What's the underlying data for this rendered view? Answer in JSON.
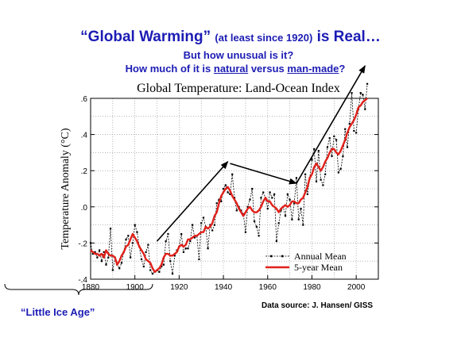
{
  "slide": {
    "title_main_a": "“Global Warming”",
    "title_paren": "(at least since 1920)",
    "title_main_b": "is Real…",
    "question_1": "But how unusual is it?",
    "question_2_a": "How much of it is ",
    "question_2_natural": "natural",
    "question_2_b": " versus ",
    "question_2_manmade": "man-made",
    "question_2_c": "?",
    "little_ice_age": "“Little Ice Age”",
    "data_source": "Data source: J. Hansen/ GISS",
    "title_color": "#1c1cb4"
  },
  "chart_data": {
    "type": "line",
    "title": "Global Temperature: Land-Ocean Index",
    "xlabel": "",
    "ylabel": "Temperature Anomaly (°C)",
    "xlim": [
      1880,
      2010
    ],
    "ylim": [
      -0.4,
      0.6
    ],
    "x_ticks": [
      1880,
      1900,
      1920,
      1940,
      1960,
      1980,
      2000
    ],
    "y_ticks": [
      -0.4,
      -0.2,
      0.0,
      0.2,
      0.4,
      0.6
    ],
    "y_tick_labels": [
      "-.4",
      "-.2",
      ".0",
      ".2",
      ".4",
      ".6"
    ],
    "grid": true,
    "legend_position": "bottom-right",
    "legend": [
      "Annual Mean",
      "5-year Mean"
    ],
    "x": [
      1880,
      1881,
      1882,
      1883,
      1884,
      1885,
      1886,
      1887,
      1888,
      1889,
      1890,
      1891,
      1892,
      1893,
      1894,
      1895,
      1896,
      1897,
      1898,
      1899,
      1900,
      1901,
      1902,
      1903,
      1904,
      1905,
      1906,
      1907,
      1908,
      1909,
      1910,
      1911,
      1912,
      1913,
      1914,
      1915,
      1916,
      1917,
      1918,
      1919,
      1920,
      1921,
      1922,
      1923,
      1924,
      1925,
      1926,
      1927,
      1928,
      1929,
      1930,
      1931,
      1932,
      1933,
      1934,
      1935,
      1936,
      1937,
      1938,
      1939,
      1940,
      1941,
      1942,
      1943,
      1944,
      1945,
      1946,
      1947,
      1948,
      1949,
      1950,
      1951,
      1952,
      1953,
      1954,
      1955,
      1956,
      1957,
      1958,
      1959,
      1960,
      1961,
      1962,
      1963,
      1964,
      1965,
      1966,
      1967,
      1968,
      1969,
      1970,
      1971,
      1972,
      1973,
      1974,
      1975,
      1976,
      1977,
      1978,
      1979,
      1980,
      1981,
      1982,
      1983,
      1984,
      1985,
      1986,
      1987,
      1988,
      1989,
      1990,
      1991,
      1992,
      1993,
      1994,
      1995,
      1996,
      1997,
      1998,
      1999,
      2000,
      2001,
      2002,
      2003,
      2004,
      2005
    ],
    "series": [
      {
        "name": "Annual Mean",
        "color": "#000000",
        "style": "dashed-with-points",
        "values": [
          -0.2,
          -0.26,
          -0.25,
          -0.28,
          -0.24,
          -0.3,
          -0.25,
          -0.32,
          -0.28,
          -0.12,
          -0.35,
          -0.28,
          -0.32,
          -0.34,
          -0.31,
          -0.25,
          -0.18,
          -0.16,
          -0.28,
          -0.2,
          -0.1,
          -0.14,
          -0.22,
          -0.29,
          -0.33,
          -0.25,
          -0.21,
          -0.35,
          -0.37,
          -0.36,
          -0.35,
          -0.36,
          -0.33,
          -0.32,
          -0.19,
          -0.15,
          -0.3,
          -0.37,
          -0.27,
          -0.24,
          -0.22,
          -0.15,
          -0.25,
          -0.23,
          -0.23,
          -0.19,
          -0.1,
          -0.17,
          -0.16,
          -0.29,
          -0.09,
          -0.06,
          -0.11,
          -0.23,
          -0.1,
          -0.13,
          -0.1,
          0.02,
          0.04,
          0.03,
          0.1,
          0.12,
          0.08,
          0.07,
          0.18,
          0.05,
          -0.02,
          0.0,
          -0.02,
          -0.04,
          -0.14,
          0.0,
          0.04,
          0.1,
          -0.08,
          -0.11,
          -0.16,
          0.05,
          0.08,
          0.05,
          -0.01,
          0.08,
          0.05,
          0.07,
          -0.19,
          -0.09,
          -0.02,
          0.0,
          -0.05,
          0.07,
          0.04,
          -0.07,
          0.02,
          0.16,
          -0.07,
          -0.01,
          -0.1,
          0.18,
          0.07,
          0.16,
          0.26,
          0.32,
          0.14,
          0.31,
          0.15,
          0.12,
          0.18,
          0.33,
          0.38,
          0.28,
          0.39,
          0.37,
          0.19,
          0.21,
          0.28,
          0.43,
          0.33,
          0.46,
          0.63,
          0.42,
          0.41,
          0.54,
          0.63,
          0.62,
          0.54,
          0.68
        ]
      },
      {
        "name": "5-year Mean",
        "color": "#e0201a",
        "style": "solid",
        "values": [
          -0.24,
          -0.25,
          -0.26,
          -0.26,
          -0.27,
          -0.26,
          -0.28,
          -0.24,
          -0.26,
          -0.27,
          -0.27,
          -0.28,
          -0.32,
          -0.3,
          -0.27,
          -0.25,
          -0.22,
          -0.21,
          -0.18,
          -0.15,
          -0.17,
          -0.19,
          -0.22,
          -0.24,
          -0.26,
          -0.29,
          -0.3,
          -0.31,
          -0.34,
          -0.36,
          -0.35,
          -0.34,
          -0.32,
          -0.28,
          -0.26,
          -0.26,
          -0.27,
          -0.27,
          -0.26,
          -0.25,
          -0.22,
          -0.21,
          -0.22,
          -0.21,
          -0.18,
          -0.18,
          -0.17,
          -0.16,
          -0.16,
          -0.15,
          -0.14,
          -0.14,
          -0.11,
          -0.12,
          -0.11,
          -0.09,
          -0.05,
          -0.03,
          0.02,
          0.06,
          0.08,
          0.1,
          0.11,
          0.09,
          0.06,
          0.04,
          0.02,
          -0.01,
          -0.03,
          -0.05,
          -0.03,
          -0.01,
          0.0,
          -0.02,
          -0.03,
          -0.03,
          -0.02,
          0.0,
          0.03,
          0.05,
          0.03,
          0.03,
          0.01,
          0.0,
          -0.01,
          -0.03,
          -0.01,
          0.0,
          0.01,
          0.0,
          0.01,
          0.03,
          0.03,
          0.02,
          0.02,
          0.04,
          0.05,
          0.08,
          0.11,
          0.16,
          0.18,
          0.22,
          0.24,
          0.22,
          0.2,
          0.22,
          0.25,
          0.27,
          0.3,
          0.32,
          0.32,
          0.3,
          0.29,
          0.31,
          0.34,
          0.37,
          0.41,
          0.44,
          0.46,
          0.48,
          0.51,
          0.55,
          0.56,
          0.58,
          0.59,
          0.6
        ]
      }
    ],
    "annotations": [
      {
        "type": "arrow",
        "from": [
          1910,
          -0.19
        ],
        "to": [
          1942,
          0.25
        ],
        "color": "#000000"
      },
      {
        "type": "arrow",
        "from": [
          1943,
          0.24
        ],
        "to": [
          1973,
          0.13
        ],
        "color": "#000000"
      },
      {
        "type": "arrow",
        "from": [
          1973,
          0.13
        ],
        "to": [
          2004,
          0.78
        ],
        "color": "#000000"
      }
    ],
    "bracket": {
      "type": "curly-brace",
      "from_x": 1880,
      "to_x": 1908
    }
  }
}
